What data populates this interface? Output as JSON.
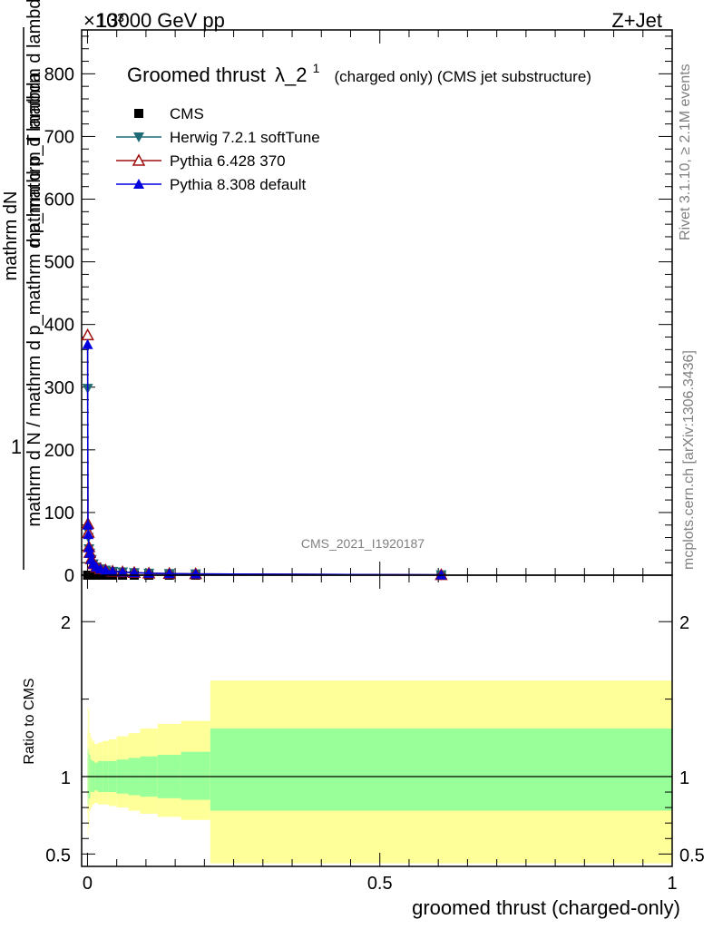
{
  "header": {
    "energy_label": "13000 GeV pp",
    "process_label": "Z+Jet",
    "multiplier_label": "×10³"
  },
  "title": {
    "main": "Groomed thrust",
    "symbol": "λ_2",
    "superscript": "1",
    "suffix": "(charged only) (CMS jet substructure)"
  },
  "side_labels": {
    "rivet": "Rivet 3.1.10, ≥ 2.1M events",
    "mcplots": "mcplots.cern.ch [arXiv:1306.3436]"
  },
  "watermark": "CMS_2021_I1920187",
  "y_axis_label": {
    "one": "1",
    "top": "mathrm dN",
    "bottom": "mathrm d N / mathrm d p_mathrm d p_mathrm d lambda",
    "partial_top": "mathrm d p_T mathrm d lambda"
  },
  "ratio_y_label": "Ratio to CMS",
  "x_axis_label": "groomed thrust (charged-only)",
  "colors": {
    "cms": "#000000",
    "herwig": "#1f6b75",
    "pythia6": "#a01010",
    "pythia8": "#0000dd",
    "band_inner": "#99ff99",
    "band_outer": "#ffff99"
  },
  "legend": [
    {
      "key": "cms",
      "label": "CMS",
      "marker": "square"
    },
    {
      "key": "herwig",
      "label": "Herwig 7.2.1 softTune",
      "marker": "triangle-down"
    },
    {
      "key": "pythia6",
      "label": "Pythia 6.428 370",
      "marker": "triangle-open"
    },
    {
      "key": "pythia8",
      "label": "Pythia 8.308 default",
      "marker": "triangle-up"
    }
  ],
  "chart_data": {
    "type": "line",
    "xlim": [
      -0.01,
      1.0
    ],
    "ylim": [
      0,
      870
    ],
    "y_multiplier": 1000,
    "x_ticks": [
      0,
      0.5,
      1
    ],
    "x_tick_labels": [
      "0",
      "0.5",
      "1"
    ],
    "y_ticks": [
      0,
      100,
      200,
      300,
      400,
      500,
      600,
      700,
      800
    ],
    "y_tick_labels": [
      "0",
      "100",
      "200",
      "300",
      "400",
      "500",
      "600",
      "700",
      "800"
    ],
    "ratio_ylim": [
      0.42,
      2.3
    ],
    "ratio_ticks": [
      0.5,
      1,
      2
    ],
    "ratio_tick_labels": [
      "0.5",
      "1",
      "2"
    ],
    "bins": [
      [
        0,
        0.0005
      ],
      [
        0.0005,
        0.001
      ],
      [
        0.001,
        0.002
      ],
      [
        0.002,
        0.003
      ],
      [
        0.003,
        0.005
      ],
      [
        0.005,
        0.008
      ],
      [
        0.008,
        0.012
      ],
      [
        0.012,
        0.018
      ],
      [
        0.018,
        0.026
      ],
      [
        0.026,
        0.036
      ],
      [
        0.036,
        0.05
      ],
      [
        0.05,
        0.07
      ],
      [
        0.07,
        0.09
      ],
      [
        0.09,
        0.12
      ],
      [
        0.12,
        0.16
      ],
      [
        0.16,
        0.21
      ],
      [
        0.21,
        1.0
      ]
    ],
    "series": [
      {
        "name": "CMS",
        "key": "cms",
        "x": [
          0.00025,
          0.00075,
          0.0015,
          0.0025,
          0.004,
          0.0065,
          0.01,
          0.015,
          0.022,
          0.031,
          0.043,
          0.06,
          0.08,
          0.105,
          0.14,
          0.185,
          0.605
        ],
        "y": [
          0,
          0,
          0,
          0,
          0,
          0,
          0,
          0,
          0,
          0,
          0,
          0,
          0,
          0,
          0,
          0,
          0
        ]
      },
      {
        "name": "Herwig 7.2.1 softTune",
        "key": "herwig",
        "x": [
          0.00025,
          0.00075,
          0.0015,
          0.0025,
          0.004,
          0.0065,
          0.01,
          0.015,
          0.022,
          0.031,
          0.043,
          0.06,
          0.08,
          0.105,
          0.14,
          0.185,
          0.605
        ],
        "y": [
          298,
          70,
          60,
          42,
          35,
          25,
          18,
          13,
          10,
          8,
          6,
          5,
          4,
          3,
          2.5,
          2,
          0.5
        ]
      },
      {
        "name": "Pythia 6.428 370",
        "key": "pythia6",
        "x": [
          0.00025,
          0.00075,
          0.0015,
          0.0025,
          0.004,
          0.0065,
          0.01,
          0.015,
          0.022,
          0.031,
          0.043,
          0.06,
          0.08,
          0.105,
          0.14,
          0.185,
          0.605
        ],
        "y": [
          383,
          82,
          68,
          45,
          36,
          26,
          18,
          13,
          10,
          8,
          6,
          5,
          4,
          3,
          2.5,
          2,
          0.5
        ]
      },
      {
        "name": "Pythia 8.308 default",
        "key": "pythia8",
        "x": [
          0.00025,
          0.00075,
          0.0015,
          0.0025,
          0.004,
          0.0065,
          0.01,
          0.015,
          0.022,
          0.031,
          0.043,
          0.06,
          0.08,
          0.105,
          0.14,
          0.185,
          0.605
        ],
        "y": [
          368,
          80,
          65,
          44,
          35,
          25,
          18,
          13,
          10,
          8,
          6,
          5,
          4,
          3,
          2.5,
          2,
          0.5
        ]
      }
    ],
    "ratio_band_inner": [
      [
        0.88,
        1.12
      ],
      [
        0.82,
        1.18
      ],
      [
        0.86,
        1.15
      ],
      [
        0.82,
        1.18
      ],
      [
        0.86,
        1.14
      ],
      [
        0.9,
        1.11
      ],
      [
        0.9,
        1.1
      ],
      [
        0.91,
        1.09
      ],
      [
        0.9,
        1.1
      ],
      [
        0.9,
        1.1
      ],
      [
        0.9,
        1.1
      ],
      [
        0.89,
        1.11
      ],
      [
        0.88,
        1.12
      ],
      [
        0.87,
        1.13
      ],
      [
        0.86,
        1.14
      ],
      [
        0.85,
        1.16
      ],
      [
        0.78,
        1.31
      ]
    ],
    "ratio_band_outer": [
      [
        0.75,
        1.3
      ],
      [
        0.62,
        1.45
      ],
      [
        0.8,
        1.28
      ],
      [
        0.66,
        1.44
      ],
      [
        0.78,
        1.28
      ],
      [
        0.8,
        1.25
      ],
      [
        0.82,
        1.23
      ],
      [
        0.83,
        1.21
      ],
      [
        0.82,
        1.22
      ],
      [
        0.82,
        1.23
      ],
      [
        0.81,
        1.24
      ],
      [
        0.8,
        1.26
      ],
      [
        0.78,
        1.28
      ],
      [
        0.76,
        1.31
      ],
      [
        0.74,
        1.34
      ],
      [
        0.72,
        1.36
      ],
      [
        0.44,
        1.62
      ]
    ]
  }
}
